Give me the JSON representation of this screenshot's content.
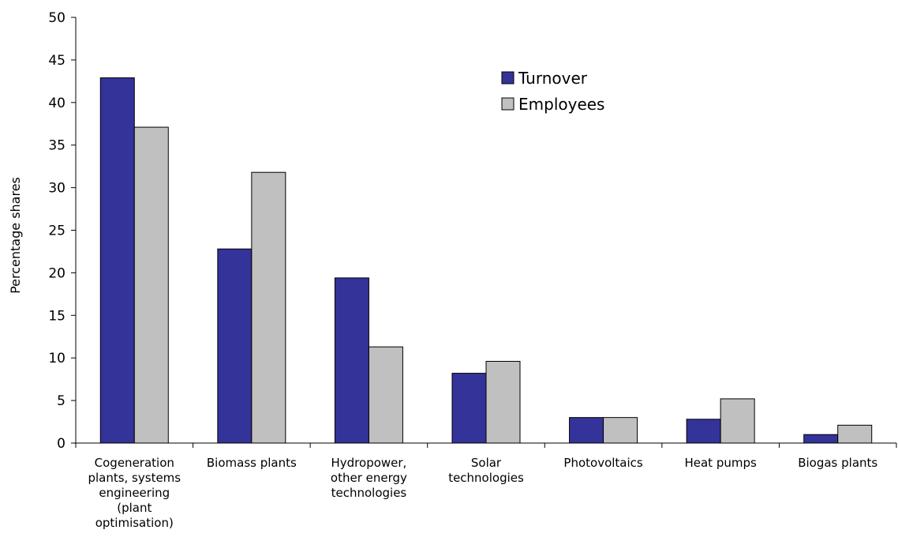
{
  "chart_data": {
    "type": "bar",
    "title": "",
    "xlabel": "",
    "ylabel": "Percentage shares",
    "ylim": [
      0,
      50
    ],
    "yticks": [
      0,
      5,
      10,
      15,
      20,
      25,
      30,
      35,
      40,
      45,
      50
    ],
    "grid": false,
    "legend_position": "top-right",
    "categories": [
      "Cogeneration plants, systems engineering (plant optimisation)",
      "Biomass plants",
      "Hydropower, other energy technologies",
      "Solar technologies",
      "Photovoltaics",
      "Heat pumps",
      "Biogas plants"
    ],
    "category_label_lines": [
      [
        "Cogeneration",
        "plants, systems",
        "engineering",
        "(plant",
        "optimisation)"
      ],
      [
        "Biomass plants"
      ],
      [
        "Hydropower,",
        "other energy",
        "technologies"
      ],
      [
        "Solar",
        "technologies"
      ],
      [
        "Photovoltaics"
      ],
      [
        "Heat pumps"
      ],
      [
        "Biogas plants"
      ]
    ],
    "series": [
      {
        "name": "Turnover",
        "color": "#333399",
        "values": [
          42.9,
          22.8,
          19.4,
          8.2,
          3.0,
          2.8,
          1.0
        ]
      },
      {
        "name": "Employees",
        "color": "#c0c0c0",
        "values": [
          37.1,
          31.8,
          11.3,
          9.6,
          3.0,
          5.2,
          2.1
        ]
      }
    ]
  }
}
